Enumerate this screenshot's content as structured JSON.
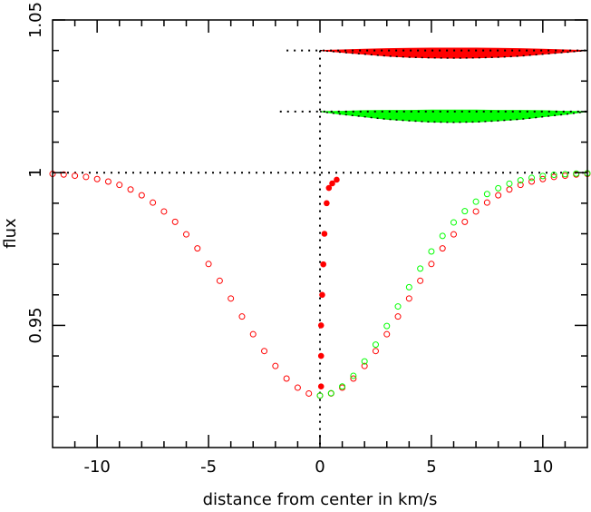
{
  "chart_data": {
    "type": "scatter",
    "xlabel": "distance from center in km/s",
    "ylabel": "flux",
    "xlim": [
      -12,
      12
    ],
    "ylim": [
      0.91,
      1.05
    ],
    "xticks": [
      -10,
      -5,
      0,
      5,
      10
    ],
    "yticks": [
      0.95,
      1,
      1.05
    ],
    "xminorticks": [
      -11,
      -9,
      -8,
      -7,
      -6,
      -4,
      -3,
      -2,
      -1,
      1,
      2,
      3,
      4,
      6,
      7,
      8,
      9,
      11
    ],
    "yminorticks": [
      0.92,
      0.93,
      0.94,
      0.96,
      0.97,
      0.98,
      0.99,
      1.01,
      1.02,
      1.03,
      1.04
    ],
    "series": [
      {
        "color": "#ff0000",
        "marker": "open",
        "x": [
          -12,
          -11.5,
          -11,
          -10.5,
          -10,
          -9.5,
          -9,
          -8.5,
          -8,
          -7.5,
          -7,
          -6.5,
          -6,
          -5.5,
          -5,
          -4.5,
          -4,
          -3.5,
          -3,
          -2.5,
          -2,
          -1.5,
          -1,
          -0.5,
          0,
          0.5,
          1,
          1.5,
          2,
          2.5,
          3,
          3.5,
          4,
          4.5,
          5,
          5.5,
          6,
          6.5,
          7,
          7.5,
          8,
          8.5,
          9,
          9.5,
          10,
          10.5,
          11,
          11.5,
          12
        ],
        "values": [
          0.9996,
          0.9994,
          0.999,
          0.9986,
          0.9979,
          0.9971,
          0.996,
          0.9945,
          0.9926,
          0.9902,
          0.9873,
          0.9839,
          0.9798,
          0.9752,
          0.9701,
          0.9646,
          0.9588,
          0.9529,
          0.9471,
          0.9416,
          0.9367,
          0.9326,
          0.9296,
          0.9277,
          0.927,
          0.9277,
          0.9296,
          0.9326,
          0.9367,
          0.9416,
          0.9471,
          0.9529,
          0.9588,
          0.9646,
          0.9701,
          0.9752,
          0.9798,
          0.9839,
          0.9873,
          0.9902,
          0.9926,
          0.9945,
          0.996,
          0.9971,
          0.9979,
          0.9986,
          0.999,
          0.9994,
          0.9996
        ]
      },
      {
        "color": "#00ff00",
        "marker": "open",
        "x": [
          0,
          0.5,
          1,
          1.5,
          2,
          2.5,
          3,
          3.5,
          4,
          4.5,
          5,
          5.5,
          6,
          6.5,
          7,
          7.5,
          8,
          8.5,
          9,
          9.5,
          10,
          10.5,
          11,
          11.5,
          12
        ],
        "values": [
          0.927,
          0.9278,
          0.93,
          0.9335,
          0.9382,
          0.9437,
          0.9498,
          0.9562,
          0.9625,
          0.9686,
          0.9742,
          0.9793,
          0.9837,
          0.9874,
          0.9905,
          0.993,
          0.9949,
          0.9964,
          0.9975,
          0.9983,
          0.9989,
          0.9993,
          0.9995,
          0.9997,
          0.9998
        ]
      },
      {
        "color": "#ff0000",
        "marker": "filled",
        "x": [
          0.05,
          0.05,
          0.05,
          0.1,
          0.15,
          0.2,
          0.3,
          0.4,
          0.55,
          0.75
        ],
        "values": [
          0.93,
          0.94,
          0.95,
          0.96,
          0.97,
          0.98,
          0.99,
          0.995,
          0.9965,
          0.9977
        ]
      }
    ],
    "bands": [
      {
        "color": "#ff0000",
        "x": [
          0,
          1,
          2,
          3,
          4,
          5,
          6,
          7,
          8,
          9,
          10,
          11,
          12
        ],
        "upper": [
          1.04,
          1.0402,
          1.0404,
          1.0406,
          1.0407,
          1.0408,
          1.0408,
          1.0408,
          1.0407,
          1.0406,
          1.0404,
          1.0402,
          1.04
        ],
        "lower": [
          1.04,
          1.0394,
          1.0388,
          1.0382,
          1.0378,
          1.0376,
          1.0375,
          1.0376,
          1.0378,
          1.0382,
          1.0388,
          1.0394,
          1.04
        ]
      },
      {
        "color": "#00ff00",
        "x": [
          0,
          1,
          2,
          3,
          4,
          5,
          6,
          7,
          8,
          9,
          10,
          11,
          12
        ],
        "upper": [
          1.02,
          1.0201,
          1.0203,
          1.0204,
          1.0204,
          1.0205,
          1.0205,
          1.0205,
          1.0204,
          1.0204,
          1.0203,
          1.0201,
          1.02
        ],
        "lower": [
          1.02,
          1.0191,
          1.0183,
          1.0175,
          1.017,
          1.0166,
          1.0165,
          1.0166,
          1.017,
          1.0175,
          1.0183,
          1.0191,
          1.02
        ]
      }
    ],
    "ref_lines": [
      {
        "x": [
          -1.5,
          12
        ],
        "y": [
          1.04,
          1.04
        ]
      },
      {
        "x": [
          -1.8,
          12
        ],
        "y": [
          1.02,
          1.02
        ]
      },
      {
        "x": [
          -12,
          12
        ],
        "y": [
          1,
          1
        ]
      },
      {
        "x": [
          0,
          0
        ],
        "y": [
          1.04,
          0.91
        ]
      }
    ]
  }
}
